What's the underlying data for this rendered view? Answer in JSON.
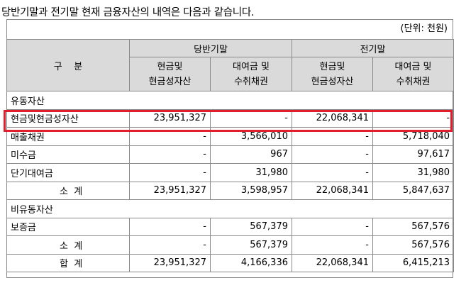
{
  "intro_text": "당반기말과 전기말 현재 금융자산의 내역은 다음과 같습니다.",
  "unit_text": "(단위: 천원)",
  "header": {
    "category": "구    분",
    "current_period": "당반기말",
    "prior_period": "전기말",
    "col_cash": "현금및\n현금성자산",
    "col_loans": "대여금 및\n수취채권"
  },
  "rows": [
    {
      "label": "유동자산",
      "type": "section",
      "values": []
    },
    {
      "label": "현금및현금성자산",
      "type": "item",
      "values": [
        "23,951,327",
        "-",
        "22,068,341",
        "-"
      ]
    },
    {
      "label": "매출채권",
      "type": "item",
      "values": [
        "-",
        "3,566,010",
        "-",
        "5,718,040"
      ]
    },
    {
      "label": "미수금",
      "type": "item",
      "values": [
        "-",
        "967",
        "-",
        "97,617"
      ]
    },
    {
      "label": "단기대여금",
      "type": "item",
      "values": [
        "-",
        "31,980",
        "-",
        "31,980"
      ]
    },
    {
      "label": "소  계",
      "type": "subtotal",
      "values": [
        "23,951,327",
        "3,598,957",
        "22,068,341",
        "5,847,637"
      ]
    },
    {
      "label": "비유동자산",
      "type": "section",
      "values": []
    },
    {
      "label": "보증금",
      "type": "item",
      "values": [
        "-",
        "567,379",
        "-",
        "567,576"
      ]
    },
    {
      "label": "소  계",
      "type": "subtotal",
      "values": [
        "-",
        "567,379",
        "-",
        "567,576"
      ]
    },
    {
      "label": "합  계",
      "type": "subtotal",
      "values": [
        "23,951,327",
        "4,166,336",
        "22,068,341",
        "6,415,213"
      ]
    }
  ],
  "highlight_color": "#e11f2c"
}
